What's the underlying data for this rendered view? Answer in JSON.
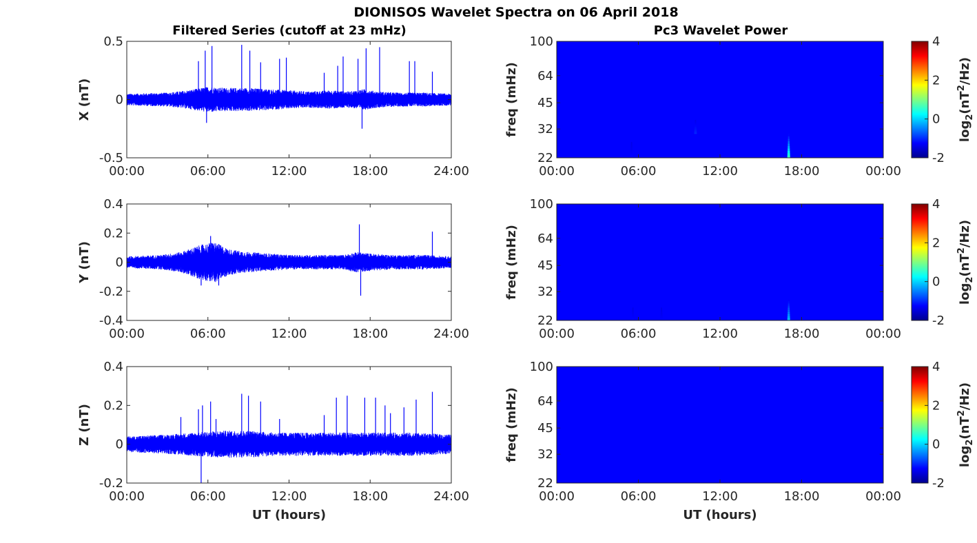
{
  "figure": {
    "title": "DIONISOS Wavelet Spectra on 06 April 2018",
    "left_title": "Filtered Series (cutoff at 23 mHz)",
    "right_title": "Pc3 Wavelet Power"
  },
  "chart_data": [
    {
      "type": "line",
      "panel": "X",
      "ylabel": "X (nT)",
      "xlabel": "",
      "xlim": [
        0,
        24
      ],
      "ylim": [
        -0.5,
        0.5
      ],
      "yticks": [
        -0.5,
        0,
        0.5
      ],
      "ytick_labels": [
        "-0.5",
        "0",
        "0.5"
      ],
      "xticks": [
        0,
        6,
        12,
        18,
        24
      ],
      "xtick_labels": [
        "00:00",
        "06:00",
        "12:00",
        "18:00",
        "24:00"
      ],
      "color": "#0000ff",
      "grid": false,
      "envelope": {
        "x": [
          0,
          3,
          4.5,
          6,
          7.5,
          9,
          10.5,
          12,
          13.5,
          15,
          16.5,
          17.5,
          18.5,
          20,
          22,
          24
        ],
        "amplitude": [
          0.05,
          0.06,
          0.08,
          0.11,
          0.1,
          0.1,
          0.09,
          0.08,
          0.07,
          0.08,
          0.07,
          0.09,
          0.07,
          0.06,
          0.06,
          0.05
        ]
      },
      "spikes": [
        {
          "x": 5.3,
          "y": 0.33
        },
        {
          "x": 5.8,
          "y": 0.42
        },
        {
          "x": 6.3,
          "y": 0.46
        },
        {
          "x": 8.5,
          "y": 0.47
        },
        {
          "x": 9.1,
          "y": 0.42
        },
        {
          "x": 9.9,
          "y": 0.32
        },
        {
          "x": 11.3,
          "y": 0.35
        },
        {
          "x": 11.8,
          "y": 0.36
        },
        {
          "x": 14.6,
          "y": 0.23
        },
        {
          "x": 15.6,
          "y": 0.29
        },
        {
          "x": 16.0,
          "y": 0.37
        },
        {
          "x": 17.1,
          "y": 0.35
        },
        {
          "x": 17.7,
          "y": 0.44
        },
        {
          "x": 18.7,
          "y": 0.45
        },
        {
          "x": 20.9,
          "y": 0.33
        },
        {
          "x": 21.3,
          "y": 0.33
        },
        {
          "x": 22.6,
          "y": 0.24
        },
        {
          "x": 17.4,
          "y": -0.25
        },
        {
          "x": 5.9,
          "y": -0.2
        }
      ]
    },
    {
      "type": "line",
      "panel": "Y",
      "ylabel": "Y (nT)",
      "xlabel": "",
      "xlim": [
        0,
        24
      ],
      "ylim": [
        -0.4,
        0.4
      ],
      "yticks": [
        -0.4,
        -0.2,
        0,
        0.2,
        0.4
      ],
      "ytick_labels": [
        "-0.4",
        "-0.2",
        "0",
        "0.2",
        "0.4"
      ],
      "xticks": [
        0,
        6,
        12,
        18,
        24
      ],
      "xtick_labels": [
        "00:00",
        "06:00",
        "12:00",
        "18:00",
        "24:00"
      ],
      "color": "#0000ff",
      "grid": false,
      "envelope": {
        "x": [
          0,
          2.5,
          4,
          5.5,
          6.5,
          7.5,
          9,
          10.5,
          12,
          14,
          16,
          17,
          18,
          19.5,
          22,
          24
        ],
        "amplitude": [
          0.04,
          0.05,
          0.07,
          0.12,
          0.14,
          0.09,
          0.07,
          0.06,
          0.05,
          0.05,
          0.05,
          0.07,
          0.06,
          0.05,
          0.05,
          0.04
        ]
      },
      "spikes": [
        {
          "x": 17.2,
          "y": 0.26
        },
        {
          "x": 22.6,
          "y": 0.21
        },
        {
          "x": 6.2,
          "y": 0.18
        },
        {
          "x": 5.5,
          "y": -0.16
        },
        {
          "x": 17.3,
          "y": -0.23
        },
        {
          "x": 6.8,
          "y": -0.16
        }
      ]
    },
    {
      "type": "line",
      "panel": "Z",
      "ylabel": "Z (nT)",
      "xlabel": "UT (hours)",
      "xlim": [
        0,
        24
      ],
      "ylim": [
        -0.2,
        0.4
      ],
      "yticks": [
        -0.2,
        0,
        0.2,
        0.4
      ],
      "ytick_labels": [
        "-0.2",
        "0",
        "0.2",
        "0.4"
      ],
      "xticks": [
        0,
        6,
        12,
        18,
        24
      ],
      "xtick_labels": [
        "00:00",
        "06:00",
        "12:00",
        "18:00",
        "24:00"
      ],
      "color": "#0000ff",
      "grid": false,
      "envelope": {
        "x": [
          0,
          3,
          5,
          7,
          9,
          11,
          13,
          15,
          17,
          19,
          21,
          24
        ],
        "amplitude": [
          0.04,
          0.05,
          0.06,
          0.07,
          0.07,
          0.06,
          0.06,
          0.06,
          0.06,
          0.06,
          0.06,
          0.05
        ]
      },
      "spikes": [
        {
          "x": 4.0,
          "y": 0.14
        },
        {
          "x": 5.3,
          "y": 0.18
        },
        {
          "x": 5.6,
          "y": 0.2
        },
        {
          "x": 6.2,
          "y": 0.22
        },
        {
          "x": 6.6,
          "y": 0.13
        },
        {
          "x": 8.5,
          "y": 0.26
        },
        {
          "x": 9.0,
          "y": 0.25
        },
        {
          "x": 9.9,
          "y": 0.22
        },
        {
          "x": 11.3,
          "y": 0.13
        },
        {
          "x": 14.6,
          "y": 0.15
        },
        {
          "x": 15.5,
          "y": 0.24
        },
        {
          "x": 16.3,
          "y": 0.25
        },
        {
          "x": 17.6,
          "y": 0.24
        },
        {
          "x": 18.4,
          "y": 0.24
        },
        {
          "x": 19.1,
          "y": 0.2
        },
        {
          "x": 19.5,
          "y": 0.16
        },
        {
          "x": 20.5,
          "y": 0.19
        },
        {
          "x": 21.4,
          "y": 0.23
        },
        {
          "x": 22.6,
          "y": 0.27
        },
        {
          "x": 5.5,
          "y": -0.2
        }
      ]
    },
    {
      "type": "heatmap",
      "panel": "X wavelet",
      "ylabel": "freq (mHz)",
      "xlabel": "",
      "xlim": [
        0,
        24
      ],
      "ylim": [
        22,
        100
      ],
      "yscale": "log",
      "yticks": [
        22,
        32,
        45,
        64,
        100
      ],
      "ytick_labels": [
        "22",
        "32",
        "45",
        "64",
        "100"
      ],
      "xticks": [
        0,
        6,
        12,
        18,
        24
      ],
      "xtick_labels": [
        "00:00",
        "06:00",
        "12:00",
        "18:00",
        "00:00"
      ],
      "background_value": -2,
      "features": [
        {
          "x": 17.05,
          "f_low": 22,
          "f_high": 30,
          "peak": 0.2
        },
        {
          "x": 10.2,
          "f_low": 30,
          "f_high": 36,
          "peak": -1.6
        },
        {
          "x": 5.5,
          "f_low": 22,
          "f_high": 27,
          "peak": -1.8
        }
      ],
      "colorbar": {
        "label": "log2(nT^2/Hz)",
        "min": -2,
        "max": 4,
        "ticks": [
          -2,
          0,
          2,
          4
        ],
        "tick_labels": [
          "-2",
          "0",
          "2",
          "4"
        ],
        "colormap": "jet"
      }
    },
    {
      "type": "heatmap",
      "panel": "Y wavelet",
      "ylabel": "freq (mHz)",
      "xlabel": "",
      "xlim": [
        0,
        24
      ],
      "ylim": [
        22,
        100
      ],
      "yscale": "log",
      "yticks": [
        22,
        32,
        45,
        64,
        100
      ],
      "ytick_labels": [
        "22",
        "32",
        "45",
        "64",
        "100"
      ],
      "xticks": [
        0,
        6,
        12,
        18,
        24
      ],
      "xtick_labels": [
        "00:00",
        "06:00",
        "12:00",
        "18:00",
        "00:00"
      ],
      "background_value": -2,
      "features": [
        {
          "x": 17.05,
          "f_low": 22,
          "f_high": 29,
          "peak": -0.6
        },
        {
          "x": 5.6,
          "f_low": 22,
          "f_high": 26,
          "peak": -1.8
        },
        {
          "x": 7.7,
          "f_low": 22,
          "f_high": 26,
          "peak": -1.85
        }
      ],
      "colorbar": {
        "label": "log2(nT^2/Hz)",
        "min": -2,
        "max": 4,
        "ticks": [
          -2,
          0,
          2,
          4
        ],
        "tick_labels": [
          "-2",
          "0",
          "2",
          "4"
        ],
        "colormap": "jet"
      }
    },
    {
      "type": "heatmap",
      "panel": "Z wavelet",
      "ylabel": "freq (mHz)",
      "xlabel": "UT (hours)",
      "xlim": [
        0,
        24
      ],
      "ylim": [
        22,
        100
      ],
      "yscale": "log",
      "yticks": [
        22,
        32,
        45,
        64,
        100
      ],
      "ytick_labels": [
        "22",
        "32",
        "45",
        "64",
        "100"
      ],
      "xticks": [
        0,
        6,
        12,
        18,
        24
      ],
      "xtick_labels": [
        "00:00",
        "06:00",
        "12:00",
        "18:00",
        "00:00"
      ],
      "background_value": -2,
      "features": [],
      "colorbar": {
        "label": "log2(nT^2/Hz)",
        "min": -2,
        "max": 4,
        "ticks": [
          -2,
          0,
          2,
          4
        ],
        "tick_labels": [
          "-2",
          "0",
          "2",
          "4"
        ],
        "colormap": "jet"
      }
    }
  ]
}
